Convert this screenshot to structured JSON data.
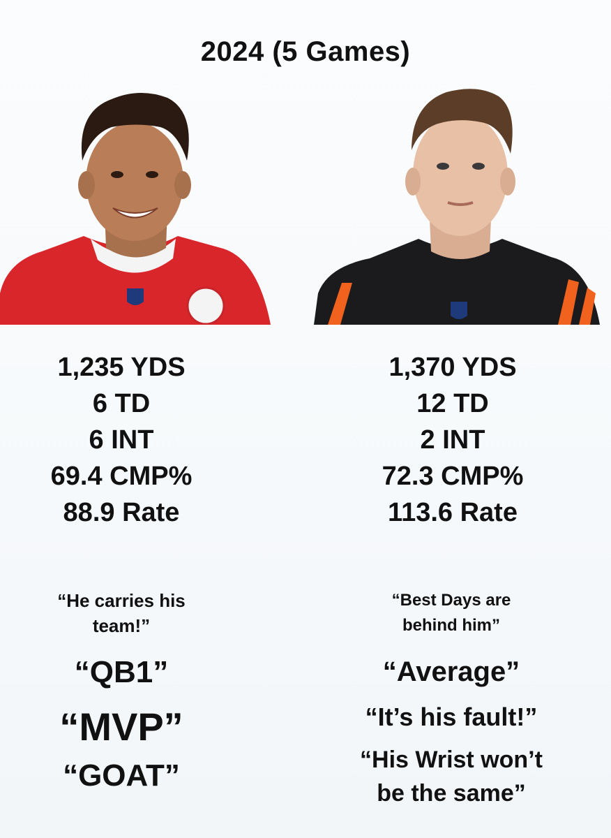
{
  "title": "2024 (5 Games)",
  "left": {
    "stats": [
      "1,235 YDS",
      "6 TD",
      "6 INT",
      "69.4 CMP%",
      "88.9 Rate"
    ],
    "quote_intro_line1": "“He carries his",
    "quote_intro_line2": "team!”",
    "quotes": [
      "“QB1”",
      "“MVP”",
      "“GOAT”"
    ],
    "jersey_color": "#d8262b"
  },
  "right": {
    "stats": [
      "1,370 YDS",
      "12 TD",
      "2 INT",
      "72.3 CMP%",
      "113.6 Rate"
    ],
    "quote_intro_line1": "“Best Days are",
    "quote_intro_line2": "behind him”",
    "quotes": [
      "“Average”",
      "“It’s his fault!”",
      "“His Wrist won’t",
      "be the same”"
    ],
    "jersey_color": "#1b1b1d",
    "stripe_color": "#f0621e"
  }
}
